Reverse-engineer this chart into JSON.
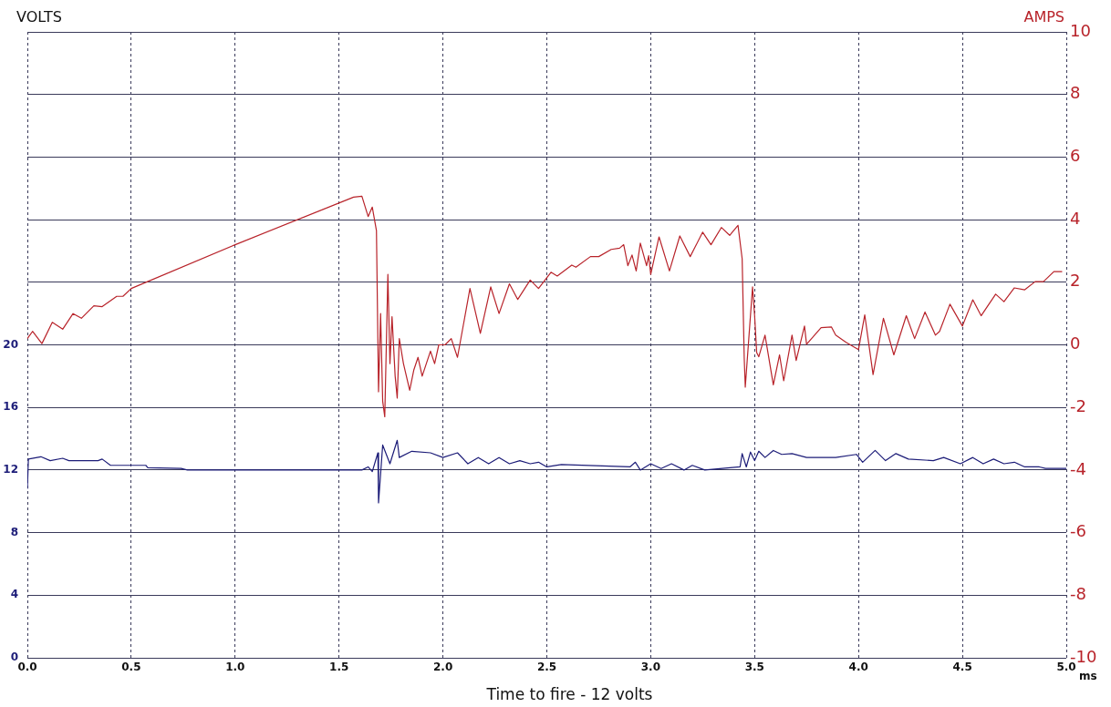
{
  "chart_data": {
    "type": "line",
    "xlabel": "Time to fire - 12 volts",
    "ylabel": "VOLTS",
    "y2label": "AMPS",
    "annotations": [
      "ms"
    ],
    "xlim": [
      0,
      5
    ],
    "xticks": [
      {
        "value": 0,
        "label": "0.0"
      },
      {
        "value": 0.5,
        "label": "0.5"
      },
      {
        "value": 1,
        "label": "1.0"
      },
      {
        "value": 1.5,
        "label": "1.5"
      },
      {
        "value": 2,
        "label": "2.0"
      },
      {
        "value": 2.5,
        "label": "2.5"
      },
      {
        "value": 3,
        "label": "3.0"
      },
      {
        "value": 3.5,
        "label": "3.5"
      },
      {
        "value": 4,
        "label": "4.0"
      },
      {
        "value": 4.5,
        "label": "4.5"
      },
      {
        "value": 5,
        "label": "5.0"
      }
    ],
    "ylim": [
      0,
      40
    ],
    "yticks": [
      0,
      4,
      8,
      12,
      16,
      20
    ],
    "y2lim": [
      -10,
      10
    ],
    "y2ticks": [
      -10,
      -8,
      -6,
      -4,
      -2,
      0,
      2,
      4,
      6,
      8,
      10
    ],
    "grid": true,
    "legend": false,
    "marker": "none",
    "line_style": "solid",
    "series": [
      {
        "color": "#1c1c78",
        "axis": "y",
        "x": [
          0,
          0.005,
          0.065,
          0.11,
          0.17,
          0.2,
          0.29,
          0.34,
          0.36,
          0.4,
          0.57,
          0.58,
          0.74,
          0.77,
          1.61,
          1.64,
          1.66,
          1.687,
          1.69,
          1.71,
          1.745,
          1.78,
          1.79,
          1.85,
          1.94,
          2.0,
          2.07,
          2.12,
          2.17,
          2.22,
          2.27,
          2.32,
          2.37,
          2.42,
          2.46,
          2.5,
          2.57,
          2.9,
          2.926,
          2.95,
          3.0,
          3.05,
          3.1,
          3.16,
          3.2,
          3.26,
          3.43,
          3.44,
          3.46,
          3.48,
          3.5,
          3.52,
          3.55,
          3.59,
          3.63,
          3.68,
          3.75,
          3.89,
          3.99,
          4.02,
          4.08,
          4.13,
          4.18,
          4.24,
          4.36,
          4.41,
          4.49,
          4.55,
          4.6,
          4.65,
          4.7,
          4.75,
          4.8,
          4.87,
          4.9,
          5.0
        ],
        "values": [
          10.8,
          12.7,
          12.85,
          12.6,
          12.75,
          12.6,
          12.6,
          12.6,
          12.7,
          12.3,
          12.3,
          12.15,
          12.1,
          12.0,
          12.0,
          12.2,
          11.9,
          13.1,
          9.9,
          13.6,
          12.4,
          13.9,
          12.8,
          13.2,
          13.1,
          12.8,
          13.1,
          12.4,
          12.8,
          12.4,
          12.8,
          12.4,
          12.6,
          12.4,
          12.5,
          12.2,
          12.35,
          12.2,
          12.5,
          12.0,
          12.4,
          12.1,
          12.4,
          12.0,
          12.3,
          12.0,
          12.2,
          13.05,
          12.2,
          13.15,
          12.6,
          13.2,
          12.8,
          13.25,
          13.0,
          13.05,
          12.8,
          12.8,
          13.0,
          12.5,
          13.25,
          12.6,
          13.05,
          12.7,
          12.6,
          12.8,
          12.4,
          12.8,
          12.4,
          12.7,
          12.4,
          12.5,
          12.2,
          12.2,
          12.1,
          12.1
        ]
      },
      {
        "color": "#b8232a",
        "axis": "y2",
        "x": [
          0,
          0.025,
          0.07,
          0.12,
          0.17,
          0.22,
          0.26,
          0.32,
          0.36,
          0.43,
          0.46,
          0.5,
          1.0,
          1.57,
          1.61,
          1.64,
          1.66,
          1.68,
          1.69,
          1.7,
          1.71,
          1.72,
          1.735,
          1.745,
          1.755,
          1.77,
          1.78,
          1.79,
          1.81,
          1.84,
          1.86,
          1.88,
          1.9,
          1.92,
          1.94,
          1.96,
          1.98,
          2.01,
          2.04,
          2.07,
          2.13,
          2.18,
          2.23,
          2.27,
          2.32,
          2.36,
          2.42,
          2.46,
          2.52,
          2.55,
          2.62,
          2.64,
          2.71,
          2.75,
          2.81,
          2.85,
          2.87,
          2.89,
          2.91,
          2.93,
          2.95,
          2.98,
          2.99,
          3.0,
          3.04,
          3.09,
          3.14,
          3.19,
          3.25,
          3.29,
          3.34,
          3.38,
          3.42,
          3.44,
          3.45,
          3.455,
          3.49,
          3.5,
          3.51,
          3.52,
          3.55,
          3.59,
          3.62,
          3.64,
          3.68,
          3.7,
          3.74,
          3.75,
          3.82,
          3.87,
          3.89,
          3.94,
          4.0,
          4.03,
          4.07,
          4.12,
          4.17,
          4.23,
          4.27,
          4.32,
          4.37,
          4.39,
          4.44,
          4.5,
          4.55,
          4.59,
          4.66,
          4.7,
          4.75,
          4.8,
          4.85,
          4.89,
          4.94,
          4.98
        ],
        "values": [
          0.2,
          0.43,
          0.04,
          0.72,
          0.5,
          1.0,
          0.85,
          1.25,
          1.22,
          1.55,
          1.55,
          1.8,
          3.2,
          4.72,
          4.75,
          4.1,
          4.4,
          3.65,
          -1.5,
          1.0,
          -1.8,
          -2.3,
          2.25,
          -0.6,
          0.9,
          -1.0,
          -1.7,
          0.2,
          -0.6,
          -1.45,
          -0.8,
          -0.4,
          -1.0,
          -0.6,
          -0.2,
          -0.6,
          0.0,
          0.0,
          0.2,
          -0.4,
          1.8,
          0.37,
          1.85,
          1.0,
          1.95,
          1.45,
          2.07,
          1.8,
          2.32,
          2.2,
          2.55,
          2.48,
          2.82,
          2.82,
          3.05,
          3.09,
          3.2,
          2.53,
          2.87,
          2.36,
          3.25,
          2.53,
          2.85,
          2.25,
          3.45,
          2.36,
          3.48,
          2.82,
          3.6,
          3.2,
          3.75,
          3.5,
          3.82,
          2.75,
          -0.43,
          -1.35,
          1.85,
          0.93,
          -0.25,
          -0.38,
          0.31,
          -1.28,
          -0.32,
          -1.15,
          0.31,
          -0.5,
          0.6,
          0.02,
          0.55,
          0.57,
          0.31,
          0.08,
          -0.15,
          0.96,
          -0.95,
          0.85,
          -0.32,
          0.93,
          0.2,
          1.05,
          0.31,
          0.43,
          1.3,
          0.6,
          1.44,
          0.93,
          1.62,
          1.38,
          1.82,
          1.76,
          2.02,
          2.02,
          2.34,
          2.34
        ]
      }
    ]
  }
}
